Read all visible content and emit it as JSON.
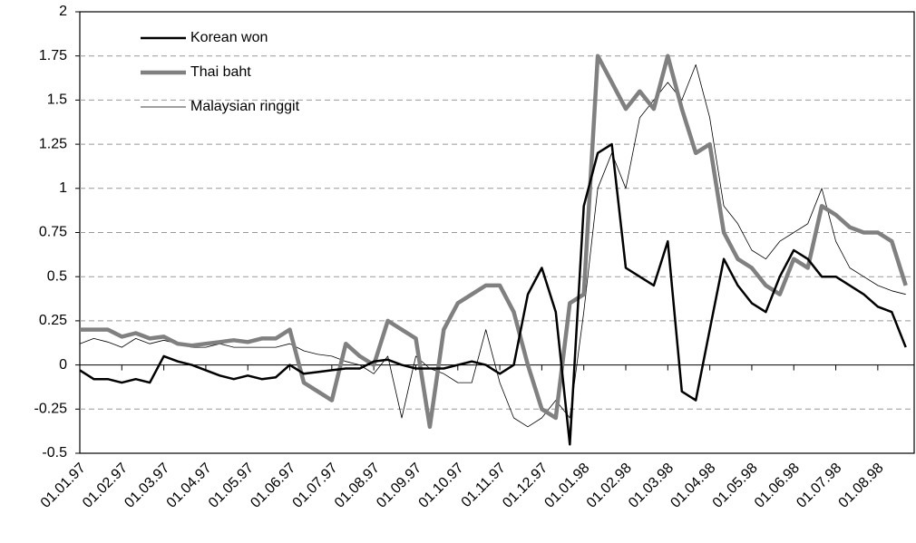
{
  "chart_data": {
    "type": "line",
    "categories": [
      "01.01.97",
      null,
      null,
      "01.02.97",
      null,
      null,
      "01.03.97",
      null,
      null,
      "01.04.97",
      null,
      null,
      "01.05.97",
      null,
      null,
      "01.06.97",
      null,
      null,
      "01.07.97",
      null,
      null,
      "01.08.97",
      null,
      null,
      "01.09.97",
      null,
      null,
      "01.10.97",
      null,
      null,
      "01.11.97",
      null,
      null,
      "01.12.97",
      null,
      null,
      "01.01.98",
      null,
      null,
      "01.02.98",
      null,
      null,
      "01.03.98",
      null,
      null,
      "01.04.98",
      null,
      null,
      "01.05.98",
      null,
      null,
      "01.06.98",
      null,
      null,
      "01.07.98",
      null,
      null,
      "01.08.98",
      null,
      null
    ],
    "series": [
      {
        "name": "Korean won",
        "color": "#000000",
        "width": 2.5,
        "values": [
          -0.03,
          -0.08,
          -0.08,
          -0.1,
          -0.08,
          -0.1,
          0.05,
          0.02,
          0.0,
          -0.03,
          -0.06,
          -0.08,
          -0.06,
          -0.08,
          -0.07,
          0.0,
          -0.05,
          -0.04,
          -0.03,
          -0.02,
          -0.02,
          0.02,
          0.03,
          0.0,
          -0.02,
          -0.02,
          -0.02,
          0.0,
          0.02,
          0.0,
          -0.05,
          0.0,
          0.4,
          0.55,
          0.3,
          -0.45,
          0.9,
          1.2,
          1.25,
          0.55,
          0.5,
          0.45,
          0.7,
          -0.15,
          -0.2,
          0.2,
          0.6,
          0.45,
          0.35,
          0.3,
          0.5,
          0.65,
          0.6,
          0.5,
          0.5,
          0.45,
          0.4,
          0.33,
          0.3,
          0.1
        ]
      },
      {
        "name": "Thai baht",
        "color": "#808080",
        "width": 4.5,
        "values": [
          0.2,
          0.2,
          0.2,
          0.16,
          0.18,
          0.15,
          0.16,
          0.12,
          0.11,
          0.12,
          0.13,
          0.14,
          0.13,
          0.15,
          0.15,
          0.2,
          -0.1,
          -0.15,
          -0.2,
          0.12,
          0.05,
          0.0,
          0.25,
          0.2,
          0.15,
          -0.35,
          0.2,
          0.35,
          0.4,
          0.45,
          0.45,
          0.3,
          0.0,
          -0.25,
          -0.3,
          0.35,
          0.4,
          1.75,
          1.6,
          1.45,
          1.55,
          1.45,
          1.75,
          1.45,
          1.2,
          1.25,
          0.75,
          0.6,
          0.55,
          0.45,
          0.4,
          0.6,
          0.55,
          0.9,
          0.85,
          0.78,
          0.75,
          0.75,
          0.7,
          0.45
        ]
      },
      {
        "name": "Malaysian ringgit",
        "color": "#000000",
        "width": 0.8,
        "values": [
          0.12,
          0.15,
          0.13,
          0.1,
          0.15,
          0.12,
          0.14,
          0.12,
          0.1,
          0.1,
          0.12,
          0.1,
          0.1,
          0.1,
          0.1,
          0.12,
          0.08,
          0.06,
          0.05,
          0.02,
          0.0,
          -0.05,
          0.05,
          -0.3,
          0.05,
          -0.02,
          -0.05,
          -0.1,
          -0.1,
          0.2,
          -0.1,
          -0.3,
          -0.35,
          -0.3,
          -0.2,
          -0.3,
          0.3,
          1.0,
          1.2,
          1.0,
          1.4,
          1.5,
          1.6,
          1.5,
          1.7,
          1.4,
          0.9,
          0.8,
          0.65,
          0.6,
          0.7,
          0.75,
          0.8,
          1.0,
          0.7,
          0.55,
          0.5,
          0.45,
          0.42,
          0.4
        ]
      }
    ],
    "ylim": [
      -0.5,
      2
    ],
    "yticks": [
      -0.5,
      -0.25,
      0,
      0.25,
      0.5,
      0.75,
      1,
      1.25,
      1.5,
      1.75,
      2
    ],
    "grid": true,
    "legend": "upper left"
  }
}
